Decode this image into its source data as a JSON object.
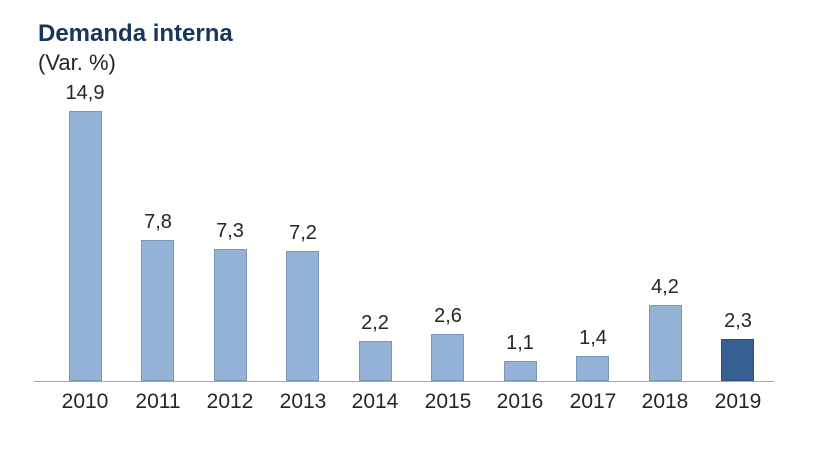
{
  "header": {
    "title": "Demanda interna",
    "subtitle": "(Var. %)"
  },
  "colors": {
    "title_text": "#17365D",
    "body_text": "#262626",
    "axis_line": "#A6A6A6",
    "bar_fill": "#95B3D7",
    "bar_border": "#7A96BC",
    "highlight_fill": "#366092",
    "highlight_border": "#2C5380"
  },
  "chart_data": {
    "type": "bar",
    "title": "Demanda interna",
    "subtitle": "(Var. %)",
    "xlabel": "",
    "ylabel": "Var. %",
    "categories": [
      "2010",
      "2011",
      "2012",
      "2013",
      "2014",
      "2015",
      "2016",
      "2017",
      "2018",
      "2019"
    ],
    "values": [
      14.9,
      7.8,
      7.3,
      7.2,
      2.2,
      2.6,
      1.1,
      1.4,
      4.2,
      2.3
    ],
    "value_labels": [
      "14,9",
      "7,8",
      "7,3",
      "7,2",
      "2,2",
      "2,6",
      "1,1",
      "1,4",
      "4,2",
      "2,3"
    ],
    "ylim": [
      0,
      16
    ],
    "grid": false,
    "legend": false,
    "y_axis_visible": false,
    "data_labels": "above bars, decimal comma format",
    "highlight_index": 9,
    "highlight_note": "2019 bar rendered in darker blue than the other bars"
  }
}
